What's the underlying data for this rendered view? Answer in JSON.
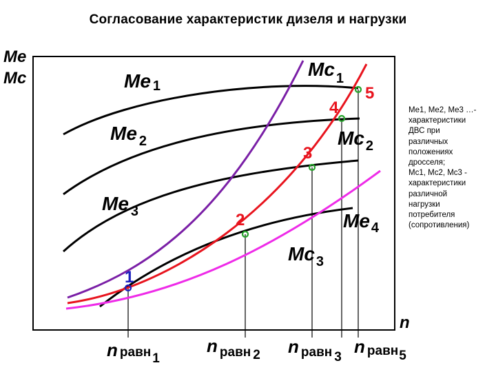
{
  "title": "Согласование характеристик дизеля и нагрузки",
  "axes": {
    "y_label_1": "Me",
    "y_label_2": "Mc",
    "x_label": "n"
  },
  "colors": {
    "engine_curves": "#000000",
    "mc1": "#7a1fa6",
    "mc2": "#e8141e",
    "mc3": "#ee2be8",
    "red_labels": "#e8141e",
    "point_1": "#1a1fbf",
    "marker": "#25a32a"
  },
  "engine_curves": [
    {
      "base": "Me",
      "sub": "1"
    },
    {
      "base": "Me",
      "sub": "2"
    },
    {
      "base": "Me",
      "sub": "3"
    },
    {
      "base": "Me",
      "sub": "4"
    }
  ],
  "load_curves": [
    {
      "base": "Mc",
      "sub": "1"
    },
    {
      "base": "Mc",
      "sub": "2"
    },
    {
      "base": "Mc",
      "sub": "3"
    }
  ],
  "points": [
    "1",
    "2",
    "3",
    "4",
    "5"
  ],
  "n_labels": [
    {
      "n": "n",
      "sub": "равн",
      "index": "1"
    },
    {
      "n": "n",
      "sub": "равн",
      "index": "2"
    },
    {
      "n": "n",
      "sub": "равн",
      "index": "3"
    },
    {
      "n": "n",
      "sub": "равн",
      "index": "5"
    }
  ],
  "legend": [
    "Me1, Me2, Me3 …-",
    "характеристики",
    "ДВС при",
    "различных",
    "положениях",
    "дросселя;",
    "Mc1, Mc2, Mc3 -",
    "характеристики",
    "различной",
    "нагрузки",
    "потребителя",
    "(сопротивления)"
  ]
}
